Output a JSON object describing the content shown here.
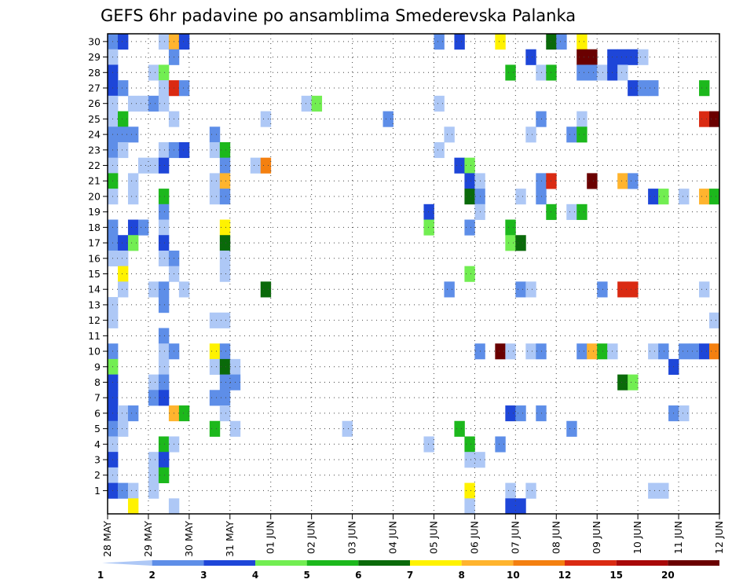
{
  "chart_data": {
    "type": "heatmap",
    "title": "GEFS 6hr padavine po ansamblima Smederevska Palanka",
    "xlabel": "",
    "ylabel": "",
    "x_tick_labels": [
      "28 MAY",
      "29 MAY",
      "30 MAY",
      "31 MAY",
      "01 JUN",
      "02 JUN",
      "03 JUN",
      "04 JUN",
      "05 JUN",
      "06 JUN",
      "07 JUN",
      "08 JUN",
      "09 JUN",
      "10 JUN",
      "11 JUN",
      "12 JUN"
    ],
    "y_tick_labels": [
      "1",
      "2",
      "3",
      "4",
      "5",
      "6",
      "7",
      "8",
      "9",
      "10",
      "11",
      "12",
      "13",
      "14",
      "15",
      "16",
      "17",
      "18",
      "19",
      "20",
      "21",
      "22",
      "23",
      "24",
      "25",
      "26",
      "27",
      "28",
      "29",
      "30"
    ],
    "n_steps": 60,
    "n_members": 31,
    "grid": true,
    "legend": "bottom",
    "colorbar_labels": [
      "1",
      "2",
      "3",
      "4",
      "5",
      "6",
      "7",
      "8",
      "10",
      "12",
      "15",
      "20"
    ],
    "colorbar_colors": [
      "#aec8f6",
      "#5e8ee8",
      "#1e46d8",
      "#72ee52",
      "#1cb81c",
      "#0a6a0a",
      "#fff200",
      "#ffb42e",
      "#f48010",
      "#da2a12",
      "#a80808",
      "#6a0000"
    ],
    "color_bins": [
      "1-2",
      "2-3",
      "3-4",
      "4-5",
      "5-6",
      "6-7",
      "7-8",
      "8-10",
      "10-12",
      "12-15",
      "15-20",
      ">20"
    ],
    "cells_note": "each cell: [time step index (6h steps from 28 MAY 00Z), ensemble member, color bin index]",
    "cells": [
      [
        0,
        30,
        1
      ],
      [
        1,
        30,
        2
      ],
      [
        5,
        30,
        0
      ],
      [
        6,
        30,
        7
      ],
      [
        7,
        30,
        2
      ],
      [
        32,
        30,
        1
      ],
      [
        34,
        30,
        2
      ],
      [
        38,
        30,
        6
      ],
      [
        43,
        30,
        5
      ],
      [
        44,
        30,
        1
      ],
      [
        46,
        30,
        6
      ],
      [
        0,
        29,
        0
      ],
      [
        6,
        29,
        1
      ],
      [
        41,
        29,
        2
      ],
      [
        46,
        29,
        11
      ],
      [
        47,
        29,
        11
      ],
      [
        49,
        29,
        2
      ],
      [
        50,
        29,
        2
      ],
      [
        51,
        29,
        2
      ],
      [
        52,
        29,
        0
      ],
      [
        0,
        28,
        2
      ],
      [
        4,
        28,
        0
      ],
      [
        5,
        28,
        3
      ],
      [
        39,
        28,
        4
      ],
      [
        42,
        28,
        0
      ],
      [
        43,
        28,
        4
      ],
      [
        46,
        28,
        1
      ],
      [
        47,
        28,
        1
      ],
      [
        48,
        28,
        0
      ],
      [
        49,
        28,
        2
      ],
      [
        50,
        28,
        0
      ],
      [
        0,
        27,
        2
      ],
      [
        1,
        27,
        1
      ],
      [
        5,
        27,
        0
      ],
      [
        6,
        27,
        9
      ],
      [
        7,
        27,
        1
      ],
      [
        51,
        27,
        2
      ],
      [
        52,
        27,
        1
      ],
      [
        53,
        27,
        1
      ],
      [
        58,
        27,
        4
      ],
      [
        0,
        26,
        0
      ],
      [
        2,
        26,
        0
      ],
      [
        3,
        26,
        0
      ],
      [
        4,
        26,
        1
      ],
      [
        5,
        26,
        0
      ],
      [
        19,
        26,
        0
      ],
      [
        20,
        26,
        3
      ],
      [
        32,
        26,
        0
      ],
      [
        0,
        25,
        0
      ],
      [
        1,
        25,
        4
      ],
      [
        6,
        25,
        0
      ],
      [
        15,
        25,
        0
      ],
      [
        27,
        25,
        1
      ],
      [
        42,
        25,
        1
      ],
      [
        46,
        25,
        0
      ],
      [
        58,
        25,
        9
      ],
      [
        59,
        25,
        11
      ],
      [
        0,
        24,
        1
      ],
      [
        1,
        24,
        1
      ],
      [
        2,
        24,
        1
      ],
      [
        10,
        24,
        1
      ],
      [
        33,
        24,
        0
      ],
      [
        41,
        24,
        0
      ],
      [
        45,
        24,
        1
      ],
      [
        46,
        24,
        4
      ],
      [
        0,
        23,
        1
      ],
      [
        1,
        23,
        0
      ],
      [
        5,
        23,
        0
      ],
      [
        6,
        23,
        1
      ],
      [
        7,
        23,
        2
      ],
      [
        10,
        23,
        0
      ],
      [
        11,
        23,
        4
      ],
      [
        32,
        23,
        0
      ],
      [
        0,
        22,
        0
      ],
      [
        3,
        22,
        0
      ],
      [
        4,
        22,
        0
      ],
      [
        5,
        22,
        2
      ],
      [
        11,
        22,
        1
      ],
      [
        14,
        22,
        0
      ],
      [
        15,
        22,
        8
      ],
      [
        34,
        22,
        2
      ],
      [
        35,
        22,
        3
      ],
      [
        0,
        21,
        4
      ],
      [
        2,
        21,
        0
      ],
      [
        10,
        21,
        0
      ],
      [
        11,
        21,
        7
      ],
      [
        35,
        21,
        2
      ],
      [
        36,
        21,
        0
      ],
      [
        42,
        21,
        1
      ],
      [
        43,
        21,
        9
      ],
      [
        47,
        21,
        11
      ],
      [
        50,
        21,
        7
      ],
      [
        51,
        21,
        1
      ],
      [
        0,
        20,
        0
      ],
      [
        2,
        20,
        0
      ],
      [
        5,
        20,
        4
      ],
      [
        10,
        20,
        0
      ],
      [
        11,
        20,
        1
      ],
      [
        35,
        20,
        5
      ],
      [
        36,
        20,
        1
      ],
      [
        40,
        20,
        0
      ],
      [
        42,
        20,
        1
      ],
      [
        53,
        20,
        2
      ],
      [
        54,
        20,
        3
      ],
      [
        56,
        20,
        0
      ],
      [
        58,
        20,
        7
      ],
      [
        59,
        20,
        4
      ],
      [
        5,
        19,
        1
      ],
      [
        31,
        19,
        2
      ],
      [
        36,
        19,
        0
      ],
      [
        43,
        19,
        4
      ],
      [
        45,
        19,
        0
      ],
      [
        46,
        19,
        4
      ],
      [
        0,
        18,
        1
      ],
      [
        2,
        18,
        2
      ],
      [
        3,
        18,
        1
      ],
      [
        5,
        18,
        0
      ],
      [
        11,
        18,
        6
      ],
      [
        31,
        18,
        3
      ],
      [
        35,
        18,
        1
      ],
      [
        39,
        18,
        4
      ],
      [
        0,
        17,
        1
      ],
      [
        1,
        17,
        2
      ],
      [
        2,
        17,
        3
      ],
      [
        5,
        17,
        2
      ],
      [
        11,
        17,
        5
      ],
      [
        39,
        17,
        3
      ],
      [
        40,
        17,
        5
      ],
      [
        0,
        16,
        0
      ],
      [
        1,
        16,
        0
      ],
      [
        5,
        16,
        0
      ],
      [
        6,
        16,
        1
      ],
      [
        11,
        16,
        0
      ],
      [
        1,
        15,
        6
      ],
      [
        6,
        15,
        0
      ],
      [
        11,
        15,
        0
      ],
      [
        35,
        15,
        3
      ],
      [
        1,
        14,
        0
      ],
      [
        4,
        14,
        0
      ],
      [
        5,
        14,
        1
      ],
      [
        7,
        14,
        0
      ],
      [
        15,
        14,
        5
      ],
      [
        33,
        14,
        1
      ],
      [
        40,
        14,
        1
      ],
      [
        41,
        14,
        0
      ],
      [
        48,
        14,
        1
      ],
      [
        50,
        14,
        9
      ],
      [
        51,
        14,
        9
      ],
      [
        58,
        14,
        0
      ],
      [
        0,
        13,
        0
      ],
      [
        5,
        13,
        1
      ],
      [
        0,
        12,
        0
      ],
      [
        10,
        12,
        0
      ],
      [
        11,
        12,
        0
      ],
      [
        59,
        12,
        0
      ],
      [
        5,
        11,
        1
      ],
      [
        0,
        10,
        1
      ],
      [
        5,
        10,
        0
      ],
      [
        6,
        10,
        1
      ],
      [
        10,
        10,
        6
      ],
      [
        11,
        10,
        1
      ],
      [
        36,
        10,
        1
      ],
      [
        38,
        10,
        11
      ],
      [
        39,
        10,
        0
      ],
      [
        41,
        10,
        0
      ],
      [
        42,
        10,
        1
      ],
      [
        46,
        10,
        1
      ],
      [
        47,
        10,
        7
      ],
      [
        48,
        10,
        4
      ],
      [
        49,
        10,
        0
      ],
      [
        53,
        10,
        0
      ],
      [
        54,
        10,
        1
      ],
      [
        56,
        10,
        1
      ],
      [
        57,
        10,
        1
      ],
      [
        58,
        10,
        2
      ],
      [
        59,
        10,
        8
      ],
      [
        0,
        9,
        3
      ],
      [
        5,
        9,
        0
      ],
      [
        10,
        9,
        0
      ],
      [
        11,
        9,
        5
      ],
      [
        12,
        9,
        0
      ],
      [
        55,
        9,
        2
      ],
      [
        0,
        8,
        2
      ],
      [
        4,
        8,
        0
      ],
      [
        5,
        8,
        1
      ],
      [
        11,
        8,
        1
      ],
      [
        12,
        8,
        1
      ],
      [
        50,
        8,
        5
      ],
      [
        51,
        8,
        3
      ],
      [
        0,
        7,
        2
      ],
      [
        4,
        7,
        1
      ],
      [
        5,
        7,
        2
      ],
      [
        10,
        7,
        1
      ],
      [
        11,
        7,
        1
      ],
      [
        0,
        6,
        2
      ],
      [
        1,
        6,
        0
      ],
      [
        2,
        6,
        1
      ],
      [
        6,
        6,
        7
      ],
      [
        7,
        6,
        4
      ],
      [
        11,
        6,
        0
      ],
      [
        39,
        6,
        2
      ],
      [
        40,
        6,
        1
      ],
      [
        42,
        6,
        1
      ],
      [
        55,
        6,
        1
      ],
      [
        56,
        6,
        0
      ],
      [
        0,
        5,
        1
      ],
      [
        1,
        5,
        0
      ],
      [
        10,
        5,
        4
      ],
      [
        12,
        5,
        0
      ],
      [
        23,
        5,
        0
      ],
      [
        34,
        5,
        4
      ],
      [
        45,
        5,
        1
      ],
      [
        0,
        4,
        0
      ],
      [
        5,
        4,
        4
      ],
      [
        6,
        4,
        0
      ],
      [
        31,
        4,
        0
      ],
      [
        35,
        4,
        4
      ],
      [
        38,
        4,
        1
      ],
      [
        0,
        3,
        2
      ],
      [
        4,
        3,
        0
      ],
      [
        5,
        3,
        2
      ],
      [
        35,
        3,
        0
      ],
      [
        36,
        3,
        0
      ],
      [
        0,
        2,
        0
      ],
      [
        4,
        2,
        0
      ],
      [
        5,
        2,
        4
      ],
      [
        0,
        1,
        2
      ],
      [
        1,
        1,
        1
      ],
      [
        2,
        1,
        0
      ],
      [
        4,
        1,
        0
      ],
      [
        35,
        1,
        6
      ],
      [
        39,
        1,
        0
      ],
      [
        41,
        1,
        0
      ],
      [
        53,
        1,
        0
      ],
      [
        54,
        1,
        0
      ],
      [
        2,
        0,
        6
      ],
      [
        6,
        0,
        0
      ],
      [
        35,
        0,
        0
      ],
      [
        39,
        0,
        2
      ],
      [
        40,
        0,
        2
      ]
    ]
  }
}
